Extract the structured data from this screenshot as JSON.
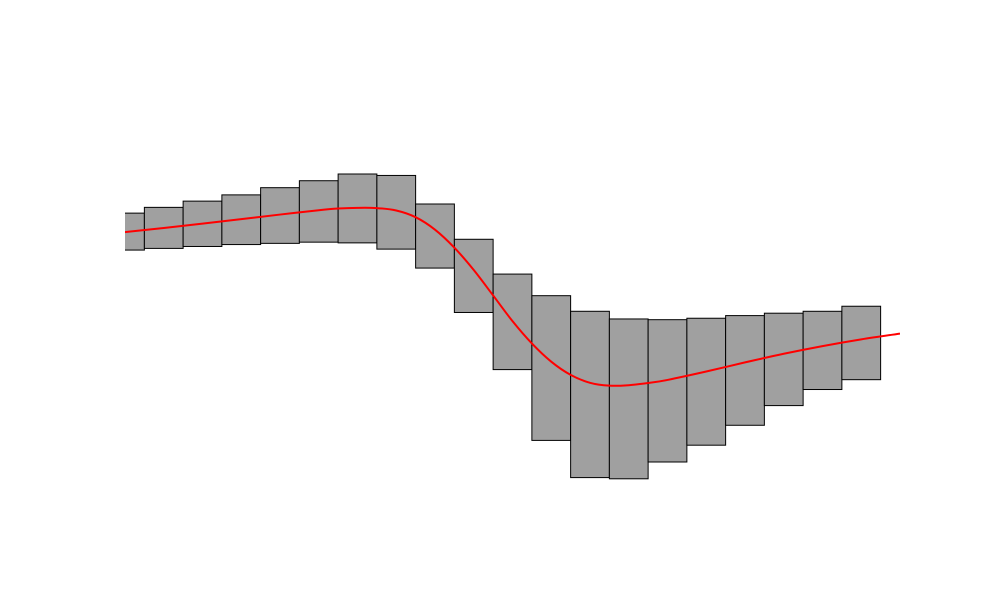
{
  "chart_data": {
    "type": "bar",
    "title": "",
    "xlabel": "",
    "ylabel": "",
    "axes_visible": false,
    "grid": false,
    "xlim": [
      -0.5,
      19.5
    ],
    "ylim": [
      -1.0,
      1.0
    ],
    "bar_color": "#a0a0a0",
    "bar_edge_color": "#000000",
    "line_color": "#ff0000",
    "bars": [
      {
        "x": -0.5,
        "bottom": 0.208,
        "top": 0.362
      },
      {
        "x": 0.5,
        "bottom": 0.215,
        "top": 0.386
      },
      {
        "x": 1.5,
        "bottom": 0.223,
        "top": 0.412
      },
      {
        "x": 2.5,
        "bottom": 0.231,
        "top": 0.438
      },
      {
        "x": 3.5,
        "bottom": 0.236,
        "top": 0.468
      },
      {
        "x": 4.5,
        "bottom": 0.241,
        "top": 0.497
      },
      {
        "x": 5.5,
        "bottom": 0.238,
        "top": 0.525
      },
      {
        "x": 6.5,
        "bottom": 0.212,
        "top": 0.519
      },
      {
        "x": 7.5,
        "bottom": 0.133,
        "top": 0.4
      },
      {
        "x": 8.5,
        "bottom": -0.052,
        "top": 0.253
      },
      {
        "x": 9.5,
        "bottom": -0.29,
        "top": 0.108
      },
      {
        "x": 10.5,
        "bottom": -0.585,
        "top": 0.018
      },
      {
        "x": 11.5,
        "bottom": -0.74,
        "top": -0.047
      },
      {
        "x": 12.5,
        "bottom": -0.745,
        "top": -0.079
      },
      {
        "x": 13.5,
        "bottom": -0.675,
        "top": -0.082
      },
      {
        "x": 14.5,
        "bottom": -0.605,
        "top": -0.076
      },
      {
        "x": 15.5,
        "bottom": -0.522,
        "top": -0.065
      },
      {
        "x": 16.5,
        "bottom": -0.44,
        "top": -0.055
      },
      {
        "x": 17.5,
        "bottom": -0.373,
        "top": -0.047
      },
      {
        "x": 18.5,
        "bottom": -0.332,
        "top": -0.026
      }
    ],
    "line": {
      "x": [
        -0.5,
        0.5,
        1.5,
        2.5,
        3.5,
        4.5,
        5.0,
        5.5,
        6.0,
        6.5,
        7.0,
        7.5,
        8.0,
        8.5,
        9.0,
        9.5,
        10.0,
        10.5,
        11.0,
        11.5,
        12.0,
        12.5,
        13.0,
        13.5,
        14.5,
        15.5,
        16.5,
        17.5,
        18.5,
        19.5
      ],
      "y": [
        0.283,
        0.3,
        0.318,
        0.337,
        0.356,
        0.374,
        0.381,
        0.384,
        0.383,
        0.373,
        0.345,
        0.293,
        0.218,
        0.125,
        0.019,
        -0.088,
        -0.181,
        -0.257,
        -0.312,
        -0.345,
        -0.357,
        -0.355,
        -0.346,
        -0.333,
        -0.298,
        -0.26,
        -0.224,
        -0.192,
        -0.164,
        -0.14
      ]
    }
  }
}
